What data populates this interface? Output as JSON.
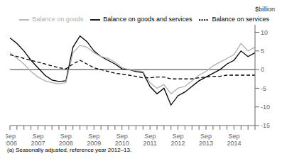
{
  "chart_data": {
    "type": "line",
    "y_label": "$billion",
    "footnote": "(a) Seasonally adjusted, reference year 2012–13.",
    "categories": [
      "Sep\n2006",
      null,
      null,
      null,
      "Sep\n2007",
      null,
      null,
      null,
      "Sep\n2008",
      null,
      null,
      null,
      "Sep\n2009",
      null,
      null,
      null,
      "Sep\n2010",
      null,
      null,
      null,
      "Sep\n2011",
      null,
      null,
      null,
      "Sep\n2012",
      null,
      null,
      null,
      "Sep\n2013",
      null,
      null,
      null,
      "Sep\n2014",
      null,
      null,
      null
    ],
    "series": [
      {
        "name": "Balance on goods and services",
        "color": "#000000",
        "line_style": "solid",
        "values": [
          8.5,
          7.0,
          5.0,
          2.5,
          0.5,
          -1.5,
          -2.8,
          -3.2,
          -3.0,
          6.0,
          9.0,
          7.5,
          5.0,
          3.5,
          2.5,
          1.5,
          0.2,
          0.0,
          -0.5,
          -0.8,
          -4.5,
          -6.5,
          -5.0,
          -9.5,
          -7.0,
          -6.0,
          -4.5,
          -3.0,
          -2.0,
          -1.0,
          0.0,
          1.5,
          2.5,
          5.0,
          3.5,
          4.5
        ]
      },
      {
        "name": "Balance on goods",
        "color": "#b0b0b0",
        "line_style": "solid",
        "values": [
          4.5,
          3.0,
          1.5,
          -0.5,
          -2.0,
          -3.0,
          -3.5,
          -3.8,
          -3.5,
          4.5,
          6.5,
          6.0,
          4.5,
          3.5,
          3.0,
          2.0,
          0.5,
          0.0,
          -0.3,
          -0.5,
          -3.5,
          -5.0,
          -4.0,
          -6.5,
          -5.0,
          -4.5,
          -3.0,
          -1.5,
          -0.5,
          1.0,
          2.0,
          3.0,
          4.0,
          7.0,
          5.0,
          6.0
        ]
      },
      {
        "name": "Balance on services",
        "color": "#000000",
        "line_style": "dashed",
        "values": [
          4.0,
          3.5,
          3.0,
          2.5,
          2.0,
          1.5,
          1.0,
          0.5,
          0.2,
          1.5,
          2.5,
          1.5,
          0.5,
          0.0,
          -0.5,
          -1.0,
          -1.2,
          -1.5,
          -1.8,
          -2.2,
          -2.2,
          -2.0,
          -2.0,
          -2.5,
          -2.5,
          -2.5,
          -2.5,
          -2.2,
          -2.0,
          -1.8,
          -1.8,
          -1.5,
          -1.5,
          -1.5,
          -1.5,
          -1.5
        ]
      }
    ],
    "ylim": [
      -15,
      12
    ],
    "yticks": [
      -15,
      -10,
      -5,
      0,
      5,
      10
    ],
    "grid": false,
    "legend": "upper right"
  }
}
